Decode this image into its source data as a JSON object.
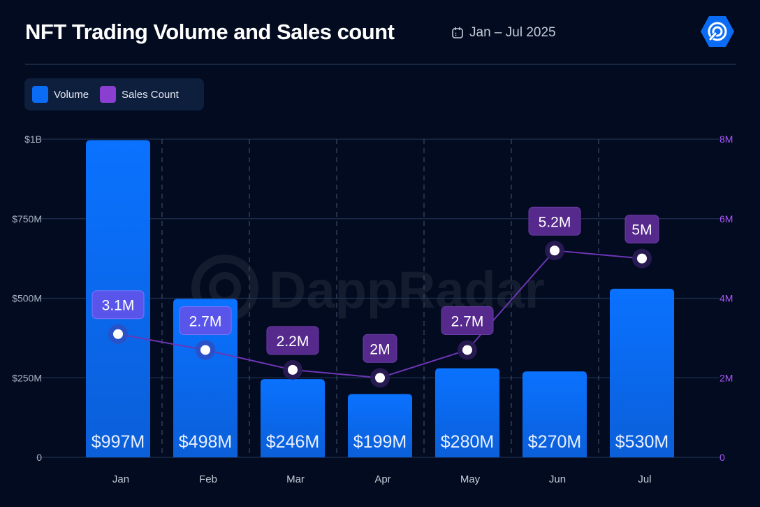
{
  "header": {
    "title": "NFT Trading Volume and Sales count",
    "date_range": "Jan – Jul 2025",
    "calendar_icon": "calendar-icon",
    "logo": "dappradar-logo",
    "watermark": "DappRadar"
  },
  "legend": [
    {
      "label": "Volume",
      "color": "#0a6cf5"
    },
    {
      "label": "Sales Count",
      "color": "#8a3fd1"
    }
  ],
  "chart_data": {
    "type": "bar+line",
    "title": "NFT Trading Volume and Sales count",
    "categories": [
      "Jan",
      "Feb",
      "Mar",
      "Apr",
      "May",
      "Jun",
      "Jul"
    ],
    "series": [
      {
        "name": "Volume",
        "type": "bar",
        "axis": "left",
        "values": [
          997,
          498,
          246,
          199,
          280,
          270,
          530
        ],
        "labels": [
          "$997M",
          "$498M",
          "$246M",
          "$199M",
          "$280M",
          "$270M",
          "$530M"
        ],
        "unit": "$M"
      },
      {
        "name": "Sales Count",
        "type": "line",
        "axis": "right",
        "values": [
          3.1,
          2.7,
          2.2,
          2.0,
          2.7,
          5.2,
          5.0
        ],
        "labels": [
          "3.1M",
          "2.7M",
          "2.2M",
          "2M",
          "2.7M",
          "5.2M",
          "5M"
        ],
        "unit": "M"
      }
    ],
    "left_axis": {
      "ylim": [
        0,
        1000
      ],
      "ticks": [
        0,
        250,
        500,
        750,
        1000
      ],
      "tick_labels": [
        "0",
        "$250M",
        "$500M",
        "$750M",
        "$1B"
      ]
    },
    "right_axis": {
      "ylim": [
        0,
        8
      ],
      "ticks": [
        0,
        2,
        4,
        6,
        8
      ],
      "tick_labels": [
        "0",
        "2M",
        "4M",
        "6M",
        "8M"
      ],
      "color": "#a855f7"
    },
    "grid": true,
    "legend_position": "top-left"
  }
}
